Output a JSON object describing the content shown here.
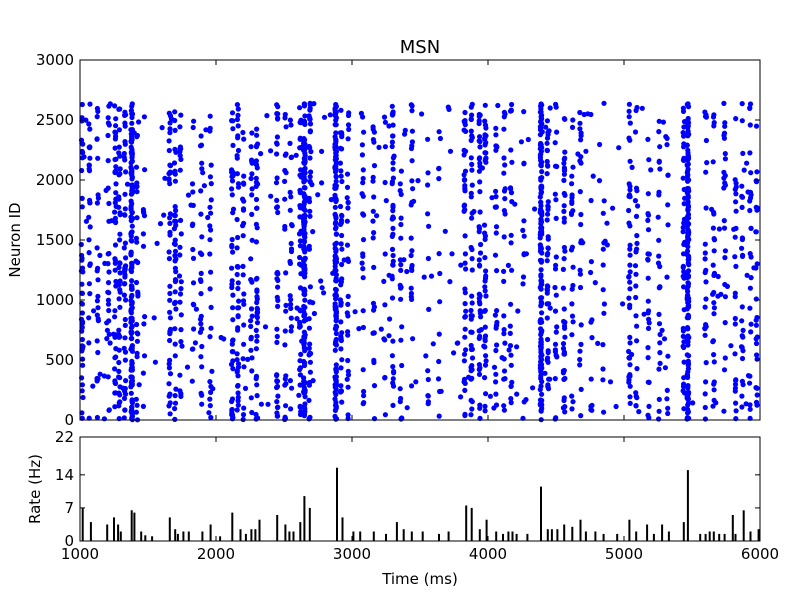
{
  "figure": {
    "background": "#ffffff"
  },
  "chart_data": [
    {
      "type": "scatter",
      "title": "MSN",
      "xlabel": "",
      "ylabel": "Neuron ID",
      "xlim": [
        1000,
        6000
      ],
      "ylim": [
        0,
        3000
      ],
      "x_ticks": [
        1000,
        2000,
        3000,
        4000,
        5000,
        6000
      ],
      "y_ticks": [
        0,
        500,
        1000,
        1500,
        2000,
        2500,
        3000
      ],
      "x_tick_labels_visible": false,
      "grid": false,
      "marker_color": "#0000ff",
      "neuron_id_range": [
        0,
        2640
      ],
      "burst_columns": [
        {
          "t": 1015,
          "density": "high"
        },
        {
          "t": 1070,
          "density": "medium"
        },
        {
          "t": 1130,
          "density": "medium"
        },
        {
          "t": 1210,
          "density": "medium"
        },
        {
          "t": 1260,
          "density": "high"
        },
        {
          "t": 1290,
          "density": "high"
        },
        {
          "t": 1330,
          "density": "high"
        },
        {
          "t": 1380,
          "density": "very_high"
        },
        {
          "t": 1420,
          "density": "medium"
        },
        {
          "t": 1470,
          "density": "low"
        },
        {
          "t": 1660,
          "density": "high"
        },
        {
          "t": 1700,
          "density": "high"
        },
        {
          "t": 1740,
          "density": "medium"
        },
        {
          "t": 1830,
          "density": "low"
        },
        {
          "t": 1890,
          "density": "medium"
        },
        {
          "t": 1960,
          "density": "medium"
        },
        {
          "t": 2120,
          "density": "high"
        },
        {
          "t": 2160,
          "density": "high"
        },
        {
          "t": 2200,
          "density": "medium"
        },
        {
          "t": 2260,
          "density": "medium"
        },
        {
          "t": 2300,
          "density": "high"
        },
        {
          "t": 2450,
          "density": "high"
        },
        {
          "t": 2510,
          "density": "medium"
        },
        {
          "t": 2550,
          "density": "medium"
        },
        {
          "t": 2620,
          "density": "high"
        },
        {
          "t": 2650,
          "density": "very_high"
        },
        {
          "t": 2690,
          "density": "high"
        },
        {
          "t": 2880,
          "density": "very_high"
        },
        {
          "t": 2920,
          "density": "high"
        },
        {
          "t": 2970,
          "density": "medium"
        },
        {
          "t": 3080,
          "density": "medium"
        },
        {
          "t": 3160,
          "density": "medium"
        },
        {
          "t": 3240,
          "density": "low"
        },
        {
          "t": 3300,
          "density": "high"
        },
        {
          "t": 3360,
          "density": "medium"
        },
        {
          "t": 3440,
          "density": "medium"
        },
        {
          "t": 3560,
          "density": "low"
        },
        {
          "t": 3640,
          "density": "low"
        },
        {
          "t": 3830,
          "density": "high"
        },
        {
          "t": 3880,
          "density": "high"
        },
        {
          "t": 3940,
          "density": "high"
        },
        {
          "t": 3980,
          "density": "high"
        },
        {
          "t": 4060,
          "density": "medium"
        },
        {
          "t": 4120,
          "density": "medium"
        },
        {
          "t": 4170,
          "density": "medium"
        },
        {
          "t": 4260,
          "density": "low"
        },
        {
          "t": 4390,
          "density": "very_high"
        },
        {
          "t": 4440,
          "density": "high"
        },
        {
          "t": 4500,
          "density": "medium"
        },
        {
          "t": 4560,
          "density": "high"
        },
        {
          "t": 4620,
          "density": "medium"
        },
        {
          "t": 4680,
          "density": "medium"
        },
        {
          "t": 4760,
          "density": "low"
        },
        {
          "t": 4850,
          "density": "low"
        },
        {
          "t": 5040,
          "density": "high"
        },
        {
          "t": 5090,
          "density": "medium"
        },
        {
          "t": 5180,
          "density": "medium"
        },
        {
          "t": 5260,
          "density": "medium"
        },
        {
          "t": 5320,
          "density": "low"
        },
        {
          "t": 5440,
          "density": "high"
        },
        {
          "t": 5470,
          "density": "very_high"
        },
        {
          "t": 5600,
          "density": "medium"
        },
        {
          "t": 5660,
          "density": "medium"
        },
        {
          "t": 5740,
          "density": "medium"
        },
        {
          "t": 5820,
          "density": "medium"
        },
        {
          "t": 5870,
          "density": "medium"
        },
        {
          "t": 5930,
          "density": "medium"
        },
        {
          "t": 5975,
          "density": "medium"
        }
      ]
    },
    {
      "type": "bar",
      "title": "",
      "xlabel": "Time (ms)",
      "ylabel": "Rate (Hz)",
      "xlim": [
        1000,
        6000
      ],
      "ylim": [
        0,
        22
      ],
      "x_ticks": [
        1000,
        2000,
        3000,
        4000,
        5000,
        6000
      ],
      "y_ticks": [
        0,
        7,
        14,
        22
      ],
      "grid": false,
      "bar_color": "#000000",
      "x": [
        1020,
        1080,
        1200,
        1250,
        1280,
        1300,
        1380,
        1400,
        1450,
        1480,
        1530,
        1660,
        1700,
        1720,
        1760,
        1800,
        1900,
        1960,
        2030,
        2120,
        2180,
        2220,
        2260,
        2290,
        2320,
        2450,
        2510,
        2540,
        2570,
        2620,
        2650,
        2690,
        2890,
        2930,
        3010,
        3060,
        3160,
        3250,
        3330,
        3380,
        3440,
        3520,
        3640,
        3710,
        3840,
        3880,
        3940,
        3990,
        4060,
        4110,
        4150,
        4180,
        4210,
        4290,
        4390,
        4440,
        4470,
        4510,
        4560,
        4620,
        4680,
        4720,
        4790,
        4850,
        4950,
        5040,
        5090,
        5170,
        5220,
        5280,
        5330,
        5440,
        5470,
        5560,
        5600,
        5630,
        5660,
        5700,
        5740,
        5800,
        5820,
        5880,
        5930,
        5990
      ],
      "values": [
        7,
        4,
        3.5,
        5,
        3.5,
        2,
        6.5,
        6,
        2,
        1.2,
        1,
        5,
        2.5,
        1.5,
        2,
        2,
        2,
        3.5,
        1,
        6,
        2.5,
        1.5,
        2.5,
        2.5,
        4.5,
        5.5,
        3.5,
        2,
        2,
        4,
        9.5,
        7,
        15.5,
        5,
        2,
        2,
        2,
        1.5,
        4,
        2.5,
        2,
        2,
        1.5,
        2,
        7.5,
        7,
        2.5,
        4.5,
        2,
        1.5,
        2,
        2,
        1.5,
        1.5,
        11.5,
        2.5,
        2.5,
        2.5,
        3.5,
        3,
        4.5,
        2,
        2,
        1.5,
        1.5,
        4.5,
        2,
        3.5,
        1.5,
        3.5,
        2,
        4,
        15,
        1.5,
        1.5,
        2,
        2,
        1.5,
        1.5,
        5.5,
        1.5,
        6.5,
        2,
        2.5
      ]
    }
  ]
}
